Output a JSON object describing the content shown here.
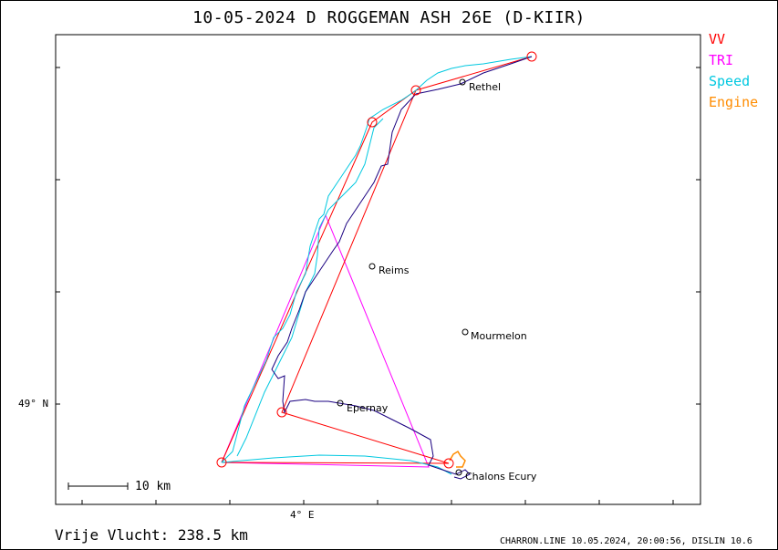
{
  "title": "10-05-2024    D ROGGEMAN    ASH 26E (D-KIIR)",
  "legend": [
    {
      "label": "VV",
      "color": "#ff0000"
    },
    {
      "label": "TRI",
      "color": "#ff00ff"
    },
    {
      "label": "Speed",
      "color": "#00c8e0"
    },
    {
      "label": "Engine",
      "color": "#ff8c00"
    }
  ],
  "axes": {
    "lat_label": "49° N",
    "lon_label": "4° E"
  },
  "scale": {
    "label": "10  km"
  },
  "cities": [
    {
      "name": "Rethel"
    },
    {
      "name": "Reims"
    },
    {
      "name": "Mourmelon"
    },
    {
      "name": "Epernay"
    },
    {
      "name": "Chalons Ecury"
    }
  ],
  "footer": {
    "distance": "Vrije Vlucht:  238.5 km",
    "stamp": "CHARRON.LINE 10.05.2024, 20:00:56, DISLIN 10.6"
  },
  "colors": {
    "track": "#1a0080",
    "speed": "#00c8e0",
    "triangle": "#ff00ff",
    "task": "#ff0000",
    "engine": "#ff8c00"
  }
}
